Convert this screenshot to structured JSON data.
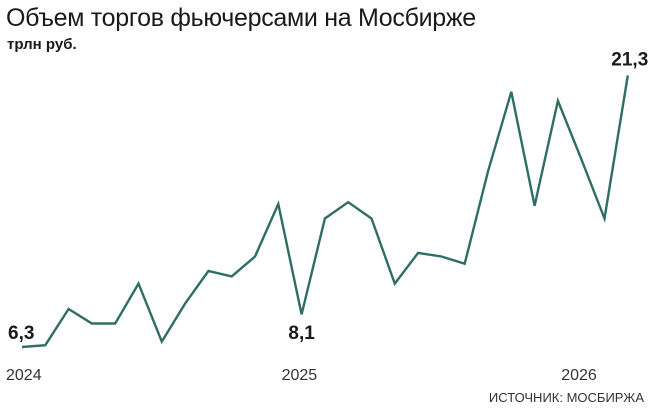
{
  "chart_data": {
    "type": "line",
    "title": "Объем торгов фьючерсами на Мосбирже",
    "subtitle": "трлн руб.",
    "source": "ИСТОЧНИК: МОСБИРЖА",
    "x": [
      "2024-01",
      "2024-02",
      "2024-03",
      "2024-04",
      "2024-05",
      "2024-06",
      "2024-07",
      "2024-08",
      "2024-09",
      "2024-10",
      "2024-11",
      "2024-12",
      "2025-01",
      "2025-02",
      "2025-03",
      "2025-04",
      "2025-05",
      "2025-06",
      "2025-07",
      "2025-08",
      "2025-09",
      "2025-10",
      "2025-11",
      "2025-12",
      "2026-01",
      "2026-02",
      "2026-03"
    ],
    "xticks": [
      "2024",
      "2025",
      "2026"
    ],
    "series": [
      {
        "values": [
          6.3,
          6.4,
          8.4,
          7.6,
          7.6,
          9.8,
          6.6,
          8.7,
          10.5,
          10.2,
          11.3,
          14.2,
          8.1,
          13.4,
          14.3,
          13.4,
          9.8,
          11.5,
          11.3,
          10.9,
          16.0,
          20.4,
          14.1,
          19.9,
          16.7,
          13.4,
          21.3
        ],
        "color": "#2e6e63"
      }
    ],
    "data_labels": [
      {
        "index": 0,
        "text": "6,3"
      },
      {
        "index": 12,
        "text": "8,1"
      },
      {
        "index": 26,
        "text": "21,3"
      }
    ],
    "grid": false
  }
}
